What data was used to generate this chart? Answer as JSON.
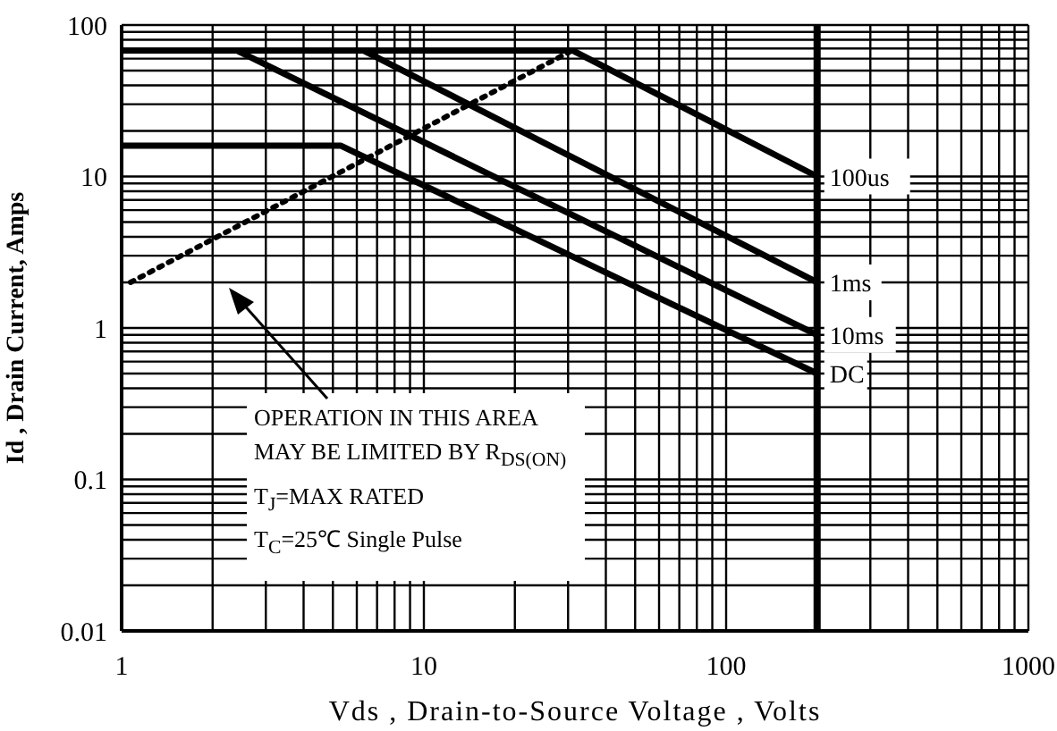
{
  "chart_data": {
    "type": "line",
    "xlabel": "Vds , Drain-to-Source Voltage , Volts",
    "ylabel": "Id , Drain Current, Amps",
    "log": "xy",
    "grid": true,
    "marker": "none",
    "xlim": [
      1,
      1000
    ],
    "ylim": [
      0.01,
      100
    ],
    "xticks": [
      1,
      {
        "value": 2,
        "label": null
      },
      {
        "value": 3,
        "label": null
      },
      {
        "value": 4,
        "label": null
      },
      {
        "value": 5,
        "label": null
      },
      {
        "value": 6,
        "label": null
      },
      {
        "value": 7,
        "label": null
      },
      {
        "value": 8,
        "label": null
      },
      {
        "value": 9,
        "label": null
      },
      10,
      {
        "value": 20,
        "label": null
      },
      {
        "value": 30,
        "label": null
      },
      {
        "value": 40,
        "label": null
      },
      {
        "value": 50,
        "label": null
      },
      {
        "value": 60,
        "label": null
      },
      {
        "value": 70,
        "label": null
      },
      {
        "value": 80,
        "label": null
      },
      {
        "value": 90,
        "label": null
      },
      100,
      {
        "value": 200,
        "label": null
      },
      {
        "value": 300,
        "label": null
      },
      {
        "value": 400,
        "label": null
      },
      {
        "value": 500,
        "label": null
      },
      {
        "value": 600,
        "label": null
      },
      {
        "value": 700,
        "label": null
      },
      {
        "value": 800,
        "label": null
      },
      {
        "value": 900,
        "label": null
      },
      1000
    ],
    "yticks": [
      0.01,
      {
        "value": 0.02,
        "label": null
      },
      {
        "value": 0.03,
        "label": null
      },
      {
        "value": 0.04,
        "label": null
      },
      {
        "value": 0.05,
        "label": null
      },
      {
        "value": 0.06,
        "label": null
      },
      {
        "value": 0.07,
        "label": null
      },
      {
        "value": 0.08,
        "label": null
      },
      {
        "value": 0.09,
        "label": null
      },
      0.1,
      {
        "value": 0.2,
        "label": null
      },
      {
        "value": 0.3,
        "label": null
      },
      {
        "value": 0.4,
        "label": null
      },
      {
        "value": 0.5,
        "label": null
      },
      {
        "value": 0.6,
        "label": null
      },
      {
        "value": 0.7,
        "label": null
      },
      {
        "value": 0.8,
        "label": null
      },
      {
        "value": 0.9,
        "label": null
      },
      1,
      {
        "value": 2,
        "label": null
      },
      {
        "value": 3,
        "label": null
      },
      {
        "value": 4,
        "label": null
      },
      {
        "value": 5,
        "label": null
      },
      {
        "value": 6,
        "label": null
      },
      {
        "value": 7,
        "label": null
      },
      {
        "value": 8,
        "label": null
      },
      {
        "value": 9,
        "label": null
      },
      10,
      {
        "value": 20,
        "label": null
      },
      {
        "value": 30,
        "label": null
      },
      {
        "value": 40,
        "label": null
      },
      {
        "value": 50,
        "label": null
      },
      {
        "value": 60,
        "label": null
      },
      {
        "value": 70,
        "label": null
      },
      {
        "value": 80,
        "label": null
      },
      {
        "value": 90,
        "label": null
      },
      100
    ],
    "series": [
      {
        "name": "100us",
        "color": "#000000",
        "x": [
          1,
          31,
          200
        ],
        "values": [
          68,
          68,
          10
        ]
      },
      {
        "name": "1ms",
        "color": "#000000",
        "x": [
          6.3,
          200
        ],
        "values": [
          68,
          2
        ]
      },
      {
        "name": "10ms",
        "color": "#000000",
        "x": [
          2.4,
          200
        ],
        "values": [
          68,
          0.9
        ]
      },
      {
        "name": "DC",
        "color": "#000000",
        "x": [
          1,
          5.3,
          200
        ],
        "values": [
          16,
          16,
          0.5
        ]
      },
      {
        "color": "#000000",
        "line_style": "dotted",
        "x": [
          1.07,
          31
        ],
        "values": [
          2,
          68
        ]
      }
    ],
    "ref_lines": [
      {
        "axis": "x",
        "value": 200,
        "color": "#000000"
      }
    ],
    "annotations": [
      "OPERATION IN THIS AREA",
      "MAY BE LIMITED BY R$_{DS(ON)}$",
      "T$_{J}$=MAX RATED",
      "T$_{C}$=25℃  Single Pulse"
    ]
  }
}
